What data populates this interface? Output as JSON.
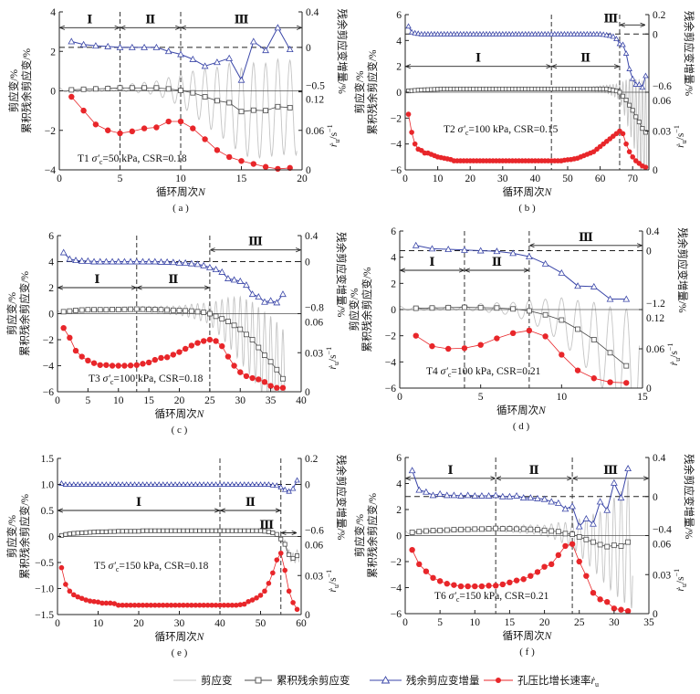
{
  "legend": {
    "shear_strain": "剪应变",
    "cumulative_residual": "累积残余剪应变",
    "residual_increment": "残余剪应变增量",
    "pore_rate": "孔压比增长速率",
    "pore_rate_symbol": "ṙ",
    "pore_rate_sub": "u"
  },
  "axis_titles": {
    "x": "循环周次",
    "x_var": "N",
    "left_line1": "剪应变/%",
    "left_line2": "累积残余剪应变/%",
    "right_upper": "残余剪应变增量/%",
    "right_lower_symbol": "ṙ",
    "right_lower_sub": "u",
    "right_lower_unit": "/s",
    "right_lower_exp": "−1"
  },
  "colors": {
    "shear": "#c4c4c4",
    "cumulative": "#4a4a4a",
    "increment": "#3a46a8",
    "rate": "#e8262a"
  },
  "chart_data": [
    {
      "type": "line",
      "key": "a",
      "caption": "( a )",
      "annotation": {
        "test": "T1 ",
        "sigma": "σ′",
        "sub": "c",
        "rest": "=50 kPa, CSR=0.18"
      },
      "x_range": [
        0,
        20
      ],
      "x_ticks": [
        "0",
        "5",
        "10",
        "15",
        "20"
      ],
      "left_range": [
        -4,
        4
      ],
      "left_ticks": [
        "−4",
        "−2",
        "0",
        "2",
        "4"
      ],
      "right_upper_ticks": [
        "0.4",
        "0",
        "−0.5"
      ],
      "right_lower_ticks": [
        "0.12",
        "0.06",
        "0"
      ],
      "phase_boundaries": [
        5,
        10
      ],
      "phases": [
        {
          "label": "Ⅰ",
          "from": 0,
          "to": 5
        },
        {
          "label": "Ⅱ",
          "from": 5,
          "to": 10
        },
        {
          "label": "Ⅲ",
          "from": 10,
          "to": 20
        }
      ],
      "shear_strain_amplitude": [
        [
          0,
          0.1
        ],
        [
          5,
          0.15
        ],
        [
          8,
          0.35
        ],
        [
          10,
          0.8
        ],
        [
          12,
          1.4
        ],
        [
          14,
          2.0
        ],
        [
          16,
          2.4
        ],
        [
          19.6,
          2.4
        ]
      ],
      "cumulative_residual": [
        0.05,
        0.08,
        0.1,
        0.12,
        0.15,
        0.15,
        0.15,
        0.15,
        0.1,
        0.02,
        -0.1,
        -0.3,
        -0.5,
        -0.6,
        -1.05,
        -0.98,
        -1.0,
        -0.8,
        -0.85
      ],
      "residual_increment": [
        0.067,
        0.033,
        0.018,
        0.011,
        0,
        0,
        0,
        0,
        -0.044,
        -0.078,
        -0.133,
        -0.21,
        -0.167,
        -0.122,
        -0.367,
        0.067,
        -0.033,
        0.222,
        -0.022
      ],
      "pore_rate": [
        0.111,
        0.09,
        0.069,
        0.06,
        0.0555,
        0.0585,
        0.063,
        0.0645,
        0.0735,
        0.0735,
        0.063,
        0.0465,
        0.03,
        0.0195,
        0.0135,
        0.009,
        0.0045,
        0.0015,
        0.003
      ]
    },
    {
      "type": "line",
      "key": "b",
      "caption": "( b )",
      "annotation": {
        "test": "T2 ",
        "sigma": "σ′",
        "sub": "c",
        "rest": "=100 kPa, CSR=0.15"
      },
      "x_range": [
        0,
        75
      ],
      "x_ticks": [
        "0",
        "10",
        "20",
        "30",
        "40",
        "50",
        "60",
        "70"
      ],
      "left_range": [
        -6,
        6
      ],
      "left_ticks": [
        "−6",
        "−4",
        "−2",
        "0",
        "2",
        "4",
        "6"
      ],
      "right_upper_ticks": [
        "0.2",
        "0",
        "−0.6"
      ],
      "right_lower_ticks": [
        "0.06",
        "0.03",
        "0"
      ],
      "phase_boundaries": [
        45,
        66
      ],
      "phases": [
        {
          "label": "Ⅰ",
          "from": 0,
          "to": 45
        },
        {
          "label": "Ⅱ",
          "from": 45,
          "to": 66
        },
        {
          "label": "Ⅲ",
          "from": 66,
          "to": 74
        }
      ],
      "shear_strain_amplitude": [
        [
          0,
          0.05
        ],
        [
          55,
          0.1
        ],
        [
          62,
          0.3
        ],
        [
          66,
          0.6
        ],
        [
          70,
          2.5
        ],
        [
          74.5,
          4.3
        ]
      ],
      "cumulative_residual": [
        0.1,
        0.12,
        0.14,
        0.16,
        0.18,
        0.19,
        0.2,
        0.21,
        0.22,
        0.23,
        0.25,
        0.25,
        0.25,
        0.25,
        0.25,
        0.25,
        0.25,
        0.25,
        0.25,
        0.25,
        0.25,
        0.25,
        0.25,
        0.25,
        0.25,
        0.25,
        0.25,
        0.25,
        0.25,
        0.25,
        0.25,
        0.25,
        0.25,
        0.25,
        0.25,
        0.25,
        0.25,
        0.25,
        0.25,
        0.25,
        0.25,
        0.25,
        0.25,
        0.25,
        0.25,
        0.25,
        0.25,
        0.25,
        0.25,
        0.25,
        0.25,
        0.25,
        0.25,
        0.25,
        0.25,
        0.25,
        0.25,
        0.25,
        0.25,
        0.25,
        0.25,
        0.25,
        0.2,
        0.15,
        0.1,
        0.0,
        -0.3,
        -0.6,
        -1.0,
        -1.4,
        -1.9,
        -2.3,
        -2.8,
        -3.1
      ],
      "residual_increment": [
        0.08,
        0.02,
        0.01,
        0.005,
        0,
        0,
        0,
        0,
        0,
        0,
        0,
        0,
        0,
        0,
        0,
        0,
        0,
        0,
        0,
        0,
        0,
        0,
        0,
        0,
        0,
        0,
        0,
        0,
        0,
        0,
        0,
        0,
        0,
        0,
        0,
        0,
        0,
        0,
        0,
        0,
        0,
        0,
        0,
        0,
        0,
        0,
        0,
        0,
        0,
        0,
        0,
        0,
        0,
        0,
        0,
        0,
        0,
        0,
        0,
        0,
        -0.005,
        -0.01,
        -0.015,
        -0.025,
        -0.05,
        -0.1,
        -0.11,
        -0.2,
        -0.36,
        -0.46,
        -0.52,
        -0.52,
        -0.55,
        -0.43
      ],
      "pore_rate": [
        0.043,
        0.029,
        0.02,
        0.016,
        0.015,
        0.013,
        0.013,
        0.012,
        0.011,
        0.01,
        0.0095,
        0.009,
        0.0085,
        0.008,
        0.007,
        0.007,
        0.007,
        0.007,
        0.007,
        0.007,
        0.007,
        0.007,
        0.007,
        0.007,
        0.007,
        0.007,
        0.007,
        0.007,
        0.007,
        0.007,
        0.007,
        0.007,
        0.007,
        0.007,
        0.007,
        0.007,
        0.007,
        0.007,
        0.007,
        0.007,
        0.007,
        0.007,
        0.007,
        0.007,
        0.007,
        0.007,
        0.007,
        0.007,
        0.0075,
        0.0078,
        0.008,
        0.0085,
        0.009,
        0.01,
        0.011,
        0.012,
        0.013,
        0.014,
        0.016,
        0.018,
        0.02,
        0.022,
        0.024,
        0.026,
        0.028,
        0.03,
        0.028,
        0.02,
        0.014,
        0.01,
        0.007,
        0.005,
        0.003,
        0.002
      ]
    },
    {
      "type": "line",
      "key": "c",
      "caption": "( c )",
      "annotation": {
        "test": "T3 ",
        "sigma": "σ′",
        "sub": "c",
        "rest": "=100 kPa, CSR=0.18"
      },
      "x_range": [
        0,
        40
      ],
      "x_ticks": [
        "0",
        "5",
        "10",
        "15",
        "20",
        "25",
        "30",
        "35",
        "40"
      ],
      "left_range": [
        -6,
        6
      ],
      "left_ticks": [
        "−6",
        "−4",
        "−2",
        "0",
        "2",
        "4",
        "6"
      ],
      "right_upper_ticks": [
        "0.4",
        "0",
        "−0.8"
      ],
      "right_lower_ticks": [
        "0.06",
        "0.03",
        "0"
      ],
      "phase_boundaries": [
        13,
        25
      ],
      "phases": [
        {
          "label": "Ⅰ",
          "from": 0,
          "to": 13
        },
        {
          "label": "Ⅱ",
          "from": 13,
          "to": 25
        },
        {
          "label": "Ⅲ",
          "from": 25,
          "to": 40
        }
      ],
      "shear_strain_amplitude": [
        [
          0,
          0.1
        ],
        [
          13,
          0.2
        ],
        [
          20,
          0.35
        ],
        [
          25,
          0.8
        ],
        [
          30,
          2.5
        ],
        [
          35,
          3.5
        ],
        [
          37.7,
          3.9
        ]
      ],
      "cumulative_residual": [
        0.15,
        0.2,
        0.25,
        0.28,
        0.3,
        0.3,
        0.3,
        0.3,
        0.32,
        0.32,
        0.33,
        0.34,
        0.35,
        0.34,
        0.33,
        0.32,
        0.3,
        0.28,
        0.26,
        0.25,
        0.22,
        0.2,
        0.15,
        0.1,
        0.0,
        -0.2,
        -0.4,
        -0.6,
        -0.9,
        -1.2,
        -1.6,
        -2.0,
        -2.6,
        -3.2,
        -3.7,
        -4.3,
        -5.0
      ],
      "residual_increment": [
        0.14,
        0.04,
        0.02,
        0.01,
        0.01,
        0,
        0,
        0,
        0,
        0,
        0,
        0,
        0,
        0,
        0,
        0,
        -0.005,
        -0.005,
        -0.01,
        -0.02,
        -0.02,
        -0.03,
        -0.04,
        -0.06,
        -0.09,
        -0.12,
        -0.16,
        -0.26,
        -0.28,
        -0.3,
        -0.36,
        -0.5,
        -0.54,
        -0.62,
        -0.6,
        -0.63,
        -0.5
      ],
      "pore_rate": [
        0.049,
        0.0415,
        0.0315,
        0.027,
        0.024,
        0.022,
        0.0205,
        0.0205,
        0.02,
        0.02,
        0.02,
        0.0202,
        0.0205,
        0.0215,
        0.0225,
        0.0245,
        0.026,
        0.0265,
        0.0285,
        0.0305,
        0.033,
        0.0355,
        0.0375,
        0.039,
        0.04,
        0.039,
        0.035,
        0.027,
        0.02,
        0.015,
        0.012,
        0.0105,
        0.0095,
        0.0075,
        0.0045,
        0.003,
        0.003
      ]
    },
    {
      "type": "line",
      "key": "d",
      "caption": "( d )",
      "annotation": {
        "test": "T4 ",
        "sigma": "σ′",
        "sub": "c",
        "rest": "=100 kPa, CSR=0.21"
      },
      "x_range": [
        0,
        15
      ],
      "x_ticks": [
        "0",
        "5",
        "10",
        "15"
      ],
      "left_range": [
        -6,
        6
      ],
      "left_ticks": [
        "−6",
        "−4",
        "−2",
        "0",
        "2",
        "4",
        "6"
      ],
      "right_upper_ticks": [
        "0.4",
        "0",
        "−1.2"
      ],
      "right_lower_ticks": [
        "0.12",
        "0.06",
        "0"
      ],
      "phase_boundaries": [
        4,
        8
      ],
      "phases": [
        {
          "label": "Ⅰ",
          "from": 0,
          "to": 4
        },
        {
          "label": "Ⅱ",
          "from": 4,
          "to": 8
        },
        {
          "label": "Ⅲ",
          "from": 8,
          "to": 15
        }
      ],
      "shear_strain_amplitude": [
        [
          0,
          0.15
        ],
        [
          4,
          0.2
        ],
        [
          7,
          0.5
        ],
        [
          9,
          1.2
        ],
        [
          11,
          2.2
        ],
        [
          13,
          3.5
        ],
        [
          14.8,
          5.0
        ]
      ],
      "cumulative_residual": [
        0.1,
        0.12,
        0.15,
        0.17,
        0.15,
        0.12,
        0.05,
        -0.1,
        -0.4,
        -0.8,
        -1.5,
        -2.3,
        -3.3,
        -4.3
      ],
      "residual_increment": [
        0.107,
        0.04,
        0.027,
        0.013,
        0,
        -0.013,
        -0.053,
        -0.12,
        -0.267,
        -0.453,
        -0.72,
        -0.733,
        -0.987,
        -0.987
      ],
      "pore_rate": [
        0.08,
        0.064,
        0.06,
        0.061,
        0.066,
        0.076,
        0.084,
        0.088,
        0.079,
        0.051,
        0.027,
        0.015,
        0.009,
        0.008
      ]
    },
    {
      "type": "line",
      "key": "e",
      "caption": "( e )",
      "annotation": {
        "test": "T5 ",
        "sigma": "σ′",
        "sub": "c",
        "rest": "=150 kPa, CSR=0.18"
      },
      "x_range": [
        0,
        60
      ],
      "x_ticks": [
        "0",
        "10",
        "20",
        "30",
        "40",
        "50",
        "60"
      ],
      "left_range": [
        -1.5,
        1.5
      ],
      "left_ticks": [
        "−1.5",
        "−1.0",
        "−0.5",
        "0",
        "0.5",
        "1.0",
        "1.5"
      ],
      "right_upper_ticks": [
        "0.2",
        "0",
        "−0.6"
      ],
      "right_lower_ticks": [
        "0.06",
        "0.03",
        "0"
      ],
      "phase_boundaries": [
        40,
        55
      ],
      "phases": [
        {
          "label": "Ⅰ",
          "from": 0,
          "to": 40
        },
        {
          "label": "Ⅱ",
          "from": 40,
          "to": 55
        },
        {
          "label": "Ⅲ",
          "from": 55,
          "to": 59
        }
      ],
      "shear_strain_amplitude": [
        [
          0,
          0.005
        ],
        [
          50,
          0.01
        ],
        [
          54,
          0.03
        ],
        [
          56,
          0.08
        ],
        [
          59.5,
          0.12
        ]
      ],
      "cumulative_residual": [
        0.02,
        0.04,
        0.05,
        0.06,
        0.065,
        0.07,
        0.075,
        0.08,
        0.085,
        0.09,
        0.09,
        0.09,
        0.095,
        0.095,
        0.1,
        0.1,
        0.1,
        0.1,
        0.1,
        0.1,
        0.11,
        0.11,
        0.11,
        0.11,
        0.11,
        0.11,
        0.11,
        0.11,
        0.11,
        0.11,
        0.11,
        0.11,
        0.11,
        0.11,
        0.11,
        0.11,
        0.11,
        0.11,
        0.11,
        0.11,
        0.11,
        0.11,
        0.11,
        0.11,
        0.11,
        0.11,
        0.11,
        0.11,
        0.11,
        0.11,
        0.1,
        0.09,
        0.07,
        0.04,
        -0.05,
        -0.15,
        -0.35,
        -0.42,
        -0.37
      ],
      "residual_increment": [
        0.008,
        0,
        0,
        0,
        0,
        0,
        0,
        0,
        0,
        0,
        0,
        0,
        0,
        0,
        0,
        0,
        0,
        0,
        0,
        0,
        0,
        0,
        0,
        0,
        0,
        0,
        0,
        0,
        0,
        0,
        0,
        0,
        0,
        0,
        0,
        0,
        0,
        0,
        0,
        0,
        0,
        0,
        0,
        0,
        0,
        0,
        0,
        0,
        0,
        0,
        0,
        0,
        -0.008,
        -0.012,
        -0.032,
        -0.06,
        -0.08,
        -0.048,
        0.032
      ],
      "pore_rate": [
        0.036,
        0.0232,
        0.018,
        0.0152,
        0.0136,
        0.0124,
        0.0112,
        0.0104,
        0.01,
        0.0096,
        0.0088,
        0.0088,
        0.0088,
        0.0084,
        0.0072,
        0.0072,
        0.0072,
        0.0072,
        0.0072,
        0.0072,
        0.0072,
        0.0072,
        0.0072,
        0.0072,
        0.0072,
        0.0072,
        0.0072,
        0.0072,
        0.0072,
        0.0072,
        0.0072,
        0.0072,
        0.0072,
        0.0072,
        0.0072,
        0.0072,
        0.0072,
        0.0072,
        0.0072,
        0.0072,
        0.0072,
        0.0072,
        0.0072,
        0.0072,
        0.0076,
        0.008,
        0.01,
        0.0112,
        0.0128,
        0.0148,
        0.018,
        0.024,
        0.032,
        0.042,
        0.0472,
        0.034,
        0.018,
        0.0092,
        0.004
      ]
    },
    {
      "type": "line",
      "key": "f",
      "caption": "( f )",
      "annotation": {
        "test": "T6 ",
        "sigma": "σ′",
        "sub": "c",
        "rest": "=150 kPa, CSR=0.21"
      },
      "x_range": [
        0,
        35
      ],
      "x_ticks": [
        "0",
        "5",
        "10",
        "15",
        "20",
        "25",
        "30",
        "35"
      ],
      "left_range": [
        -6,
        6
      ],
      "left_ticks": [
        "−6",
        "−4",
        "−2",
        "0",
        "2",
        "4",
        "6"
      ],
      "right_upper_ticks": [
        "0.4",
        "0",
        "−0.4"
      ],
      "right_lower_ticks": [
        "0.06",
        "0.03",
        "0"
      ],
      "phase_boundaries": [
        13,
        24
      ],
      "phases": [
        {
          "label": "Ⅰ",
          "from": 0,
          "to": 13
        },
        {
          "label": "Ⅱ",
          "from": 13,
          "to": 24
        },
        {
          "label": "Ⅲ",
          "from": 24,
          "to": 35
        }
      ],
      "shear_strain_amplitude": [
        [
          0,
          0.1
        ],
        [
          13,
          0.2
        ],
        [
          20,
          0.4
        ],
        [
          24,
          1.0
        ],
        [
          28,
          2.5
        ],
        [
          32.7,
          5.2
        ]
      ],
      "cumulative_residual": [
        0.25,
        0.3,
        0.35,
        0.38,
        0.4,
        0.42,
        0.45,
        0.47,
        0.48,
        0.5,
        0.5,
        0.52,
        0.55,
        0.52,
        0.52,
        0.5,
        0.5,
        0.48,
        0.45,
        0.4,
        0.35,
        0.3,
        0.15,
        0.1,
        -0.1,
        -0.3,
        -0.5,
        -0.7,
        -0.85,
        -0.75,
        -0.8,
        -0.5
      ],
      "residual_increment": [
        0.267,
        0.067,
        0.047,
        0.013,
        0.027,
        0.013,
        0.013,
        0.007,
        0.013,
        0.007,
        0.007,
        0.007,
        0.013,
        0,
        0,
        0.007,
        -0.013,
        -0.013,
        -0.02,
        -0.027,
        -0.053,
        -0.067,
        -0.127,
        -0.1,
        -0.307,
        -0.227,
        -0.28,
        -0.053,
        -0.14,
        0.14,
        -0.013,
        0.287
      ],
      "pore_rate": [
        0.049,
        0.038,
        0.0325,
        0.0275,
        0.025,
        0.023,
        0.022,
        0.021,
        0.021,
        0.021,
        0.021,
        0.0215,
        0.0215,
        0.0225,
        0.024,
        0.0255,
        0.0265,
        0.029,
        0.032,
        0.036,
        0.038,
        0.045,
        0.052,
        0.0535,
        0.04,
        0.029,
        0.016,
        0.011,
        0.009,
        0.004,
        0.003,
        0.002
      ]
    }
  ]
}
